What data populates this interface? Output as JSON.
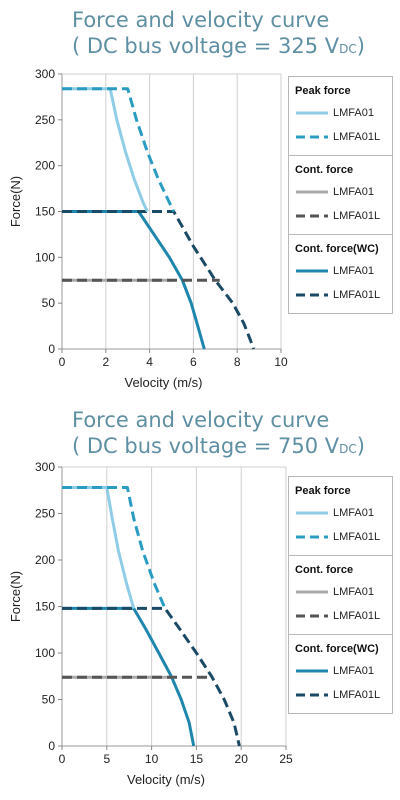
{
  "colors": {
    "lmfa01_peak": "#8fcde6",
    "lmfa01l_peak": "#2a9cc2",
    "lmfa01_cont": "#a9a9a9",
    "lmfa01l_cont": "#555555",
    "lmfa01_wc": "#1e86ad",
    "lmfa01l_wc": "#1a4a66",
    "title": "#5f8fa3",
    "grid": "#cfcfcf"
  },
  "panels": [
    {
      "title_line1": "Force and velocity curve",
      "title_line2_prefix": "( DC bus voltage = 325 V",
      "title_line2_sub": "DC",
      "title_line2_suffix": ")",
      "legend": {
        "peak_title": "Peak force",
        "cont_title": "Cont. force",
        "wc_title": "Cont. force(WC)",
        "label_a": "LMFA01",
        "label_b": "LMFA01L"
      }
    },
    {
      "title_line1": "Force and velocity curve",
      "title_line2_prefix": "( DC bus voltage = 750 V",
      "title_line2_sub": "DC",
      "title_line2_suffix": ")",
      "legend": {
        "peak_title": "Peak force",
        "cont_title": "Cont. force",
        "wc_title": "Cont. force(WC)",
        "label_a": "LMFA01",
        "label_b": "LMFA01L"
      }
    }
  ],
  "chart_data": [
    {
      "type": "line",
      "title": "Force and velocity curve ( DC bus voltage = 325 VDC)",
      "xlabel": "Velocity (m/s)",
      "ylabel": "Force(N)",
      "xlim": [
        0,
        10
      ],
      "ylim": [
        0,
        300
      ],
      "xticks": [
        0,
        2,
        4,
        6,
        8,
        10
      ],
      "yticks": [
        0,
        50,
        100,
        150,
        200,
        250,
        300
      ],
      "grid": "vertical",
      "legend_position": "right",
      "series": [
        {
          "name": "LMFA01",
          "group": "Cont. force(WC)",
          "style": "solid",
          "color_key": "lmfa01_wc",
          "x": [
            0,
            3.5,
            4.2,
            4.9,
            5.5,
            5.9,
            6.2,
            6.4,
            6.5
          ],
          "y": [
            150,
            150,
            125,
            100,
            75,
            50,
            25,
            8,
            0
          ]
        },
        {
          "name": "LMFA01L",
          "group": "Cont. force(WC)",
          "style": "dashed",
          "color_key": "lmfa01l_wc",
          "x": [
            0,
            5.1,
            6.0,
            7.0,
            7.8,
            8.3,
            8.6,
            8.75
          ],
          "y": [
            150,
            150,
            112,
            75,
            50,
            28,
            10,
            0
          ]
        },
        {
          "name": "LMFA01",
          "group": "Cont. force",
          "style": "solid",
          "color_key": "lmfa01_cont",
          "x": [
            0,
            5.0
          ],
          "y": [
            75,
            75
          ]
        },
        {
          "name": "LMFA01L",
          "group": "Cont. force",
          "style": "dashed",
          "color_key": "lmfa01l_cont",
          "x": [
            0,
            7.2
          ],
          "y": [
            75,
            75
          ]
        },
        {
          "name": "LMFA01",
          "group": "Peak force",
          "style": "solid",
          "color_key": "lmfa01_peak",
          "x": [
            0,
            2.2,
            2.5,
            2.9,
            3.3,
            3.7,
            3.9
          ],
          "y": [
            284,
            284,
            250,
            215,
            185,
            160,
            150
          ]
        },
        {
          "name": "LMFA01L",
          "group": "Peak force",
          "style": "dashed",
          "color_key": "lmfa01l_peak",
          "x": [
            0,
            3.0,
            3.4,
            3.9,
            4.4,
            4.9,
            5.1
          ],
          "y": [
            284,
            284,
            250,
            215,
            185,
            160,
            150
          ]
        }
      ]
    },
    {
      "type": "line",
      "title": "Force and velocity curve ( DC bus voltage = 750 VDC)",
      "xlabel": "Velocity (m/s)",
      "ylabel": "Force(N)",
      "xlim": [
        0,
        25
      ],
      "ylim": [
        0,
        300
      ],
      "xticks": [
        0,
        5,
        10,
        15,
        20,
        25
      ],
      "yticks": [
        0,
        50,
        100,
        150,
        200,
        250,
        300
      ],
      "grid": "vertical",
      "legend_position": "right",
      "series": [
        {
          "name": "LMFA01",
          "group": "Cont. force(WC)",
          "style": "solid",
          "color_key": "lmfa01_wc",
          "x": [
            0,
            8.0,
            9.4,
            10.8,
            12.2,
            13.3,
            14.2,
            14.7
          ],
          "y": [
            148,
            148,
            125,
            100,
            75,
            50,
            25,
            0
          ]
        },
        {
          "name": "LMFA01L",
          "group": "Cont. force(WC)",
          "style": "dashed",
          "color_key": "lmfa01l_wc",
          "x": [
            0,
            11.5,
            13.2,
            15.0,
            16.7,
            18.1,
            19.2,
            19.8
          ],
          "y": [
            148,
            148,
            125,
            100,
            75,
            50,
            25,
            0
          ]
        },
        {
          "name": "LMFA01",
          "group": "Cont. force",
          "style": "solid",
          "color_key": "lmfa01_cont",
          "x": [
            0,
            12.5
          ],
          "y": [
            74,
            74
          ]
        },
        {
          "name": "LMFA01L",
          "group": "Cont. force",
          "style": "dashed",
          "color_key": "lmfa01l_cont",
          "x": [
            0,
            16.5
          ],
          "y": [
            74,
            74
          ]
        },
        {
          "name": "LMFA01",
          "group": "Peak force",
          "style": "solid",
          "color_key": "lmfa01_peak",
          "x": [
            0,
            5.0,
            5.6,
            6.3,
            7.2,
            8.0
          ],
          "y": [
            278,
            278,
            245,
            210,
            175,
            148
          ]
        },
        {
          "name": "LMFA01L",
          "group": "Peak force",
          "style": "dashed",
          "color_key": "lmfa01l_peak",
          "x": [
            0,
            7.3,
            8.0,
            9.0,
            10.3,
            11.5
          ],
          "y": [
            278,
            278,
            245,
            210,
            175,
            148
          ]
        }
      ]
    }
  ]
}
